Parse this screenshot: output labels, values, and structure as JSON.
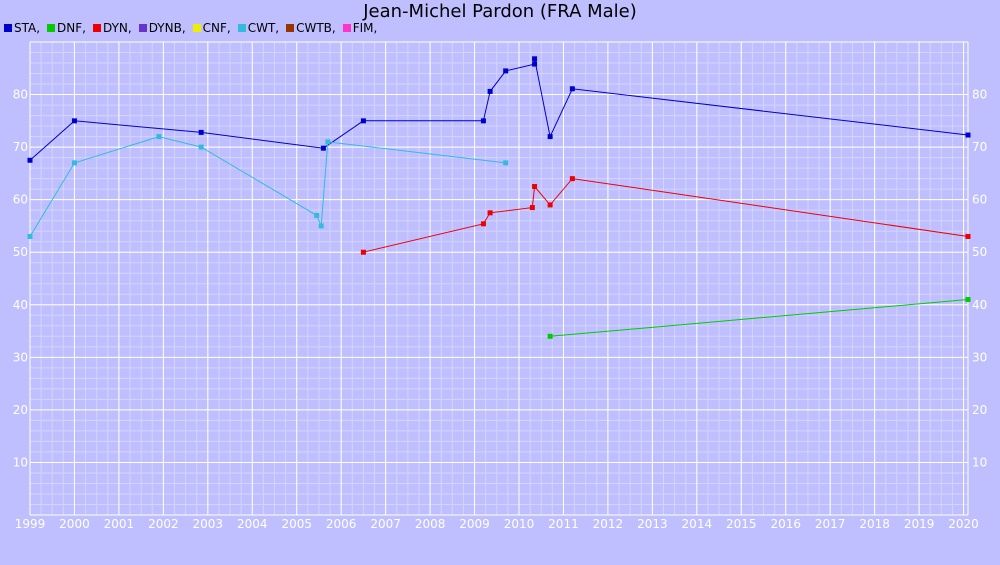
{
  "chart_data": {
    "type": "line",
    "title": "Jean-Michel Pardon (FRA Male)",
    "xlabel": "",
    "ylabel": "",
    "xlim": [
      1999,
      2020.1
    ],
    "ylim": [
      0,
      90
    ],
    "x_ticks": [
      "1999",
      "2000",
      "2001",
      "2002",
      "2003",
      "2004",
      "2005",
      "2006",
      "2007",
      "2008",
      "2009",
      "2010",
      "2011",
      "2012",
      "2013",
      "2014",
      "2015",
      "2016",
      "2017",
      "2018",
      "2019",
      "2020"
    ],
    "y_ticks": [
      "10",
      "20",
      "30",
      "40",
      "50",
      "60",
      "70",
      "80"
    ],
    "grid": true,
    "legend_position": "top-left",
    "legend": [
      {
        "name": "STA,",
        "color": "#0000cc"
      },
      {
        "name": "DNF,",
        "color": "#00cc00"
      },
      {
        "name": "DYN,",
        "color": "#ee0000"
      },
      {
        "name": "DYNB,",
        "color": "#6633cc"
      },
      {
        "name": "CNF,",
        "color": "#eeee00"
      },
      {
        "name": "CWT,",
        "color": "#33bbdd"
      },
      {
        "name": "CWTB,",
        "color": "#993300"
      },
      {
        "name": "FIM,",
        "color": "#ff33cc"
      }
    ],
    "series": [
      {
        "name": "STA",
        "color": "#0000cc",
        "points": [
          [
            1999.0,
            67.5
          ],
          [
            2000.0,
            75
          ],
          [
            2002.85,
            72.8
          ],
          [
            2005.6,
            69.8
          ],
          [
            2006.5,
            75
          ],
          [
            2009.2,
            75
          ],
          [
            2009.35,
            80.6
          ],
          [
            2009.7,
            84.5
          ],
          [
            2010.35,
            85.8
          ],
          [
            2010.35,
            86.8
          ],
          [
            2010.7,
            72
          ],
          [
            2011.2,
            81.1
          ],
          [
            2020.1,
            72.3
          ]
        ]
      },
      {
        "name": "DNF",
        "color": "#00cc00",
        "points": [
          [
            2010.7,
            34
          ],
          [
            2020.1,
            41
          ]
        ]
      },
      {
        "name": "DYN",
        "color": "#ee0000",
        "points": [
          [
            2006.5,
            50
          ],
          [
            2009.2,
            55.4
          ],
          [
            2009.35,
            57.5
          ],
          [
            2010.3,
            58.5
          ],
          [
            2010.35,
            62.5
          ],
          [
            2010.7,
            59
          ],
          [
            2011.2,
            64
          ],
          [
            2020.1,
            53
          ]
        ]
      },
      {
        "name": "CWT",
        "color": "#33bbdd",
        "points": [
          [
            1999.0,
            53
          ],
          [
            2000.0,
            67
          ],
          [
            2001.9,
            72
          ],
          [
            2002.85,
            70
          ],
          [
            2005.45,
            57
          ],
          [
            2005.55,
            55
          ],
          [
            2005.7,
            71
          ],
          [
            2009.7,
            67
          ]
        ]
      }
    ]
  }
}
